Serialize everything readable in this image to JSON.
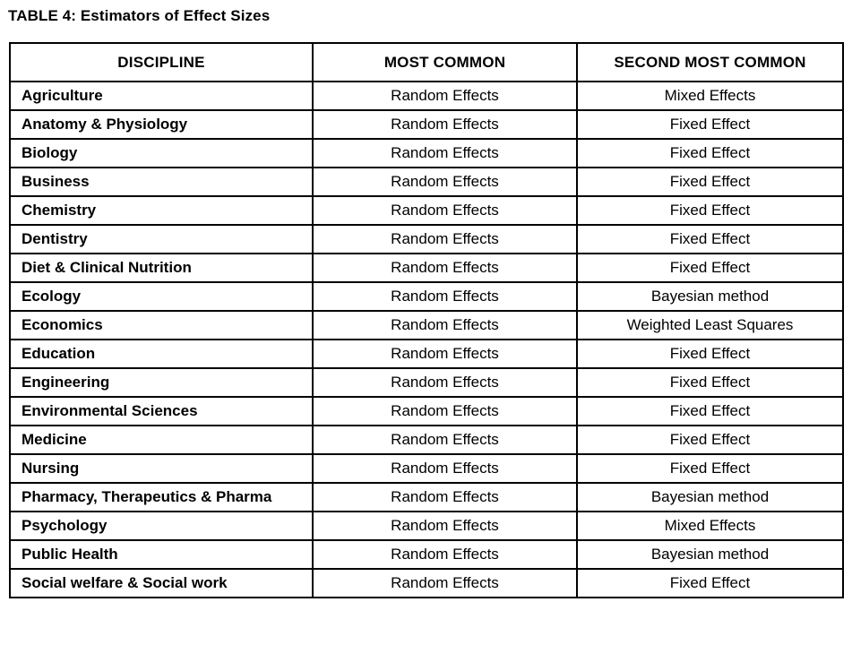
{
  "title": "TABLE 4: Estimators of Effect Sizes",
  "table": {
    "columns": [
      "DISCIPLINE",
      "MOST COMMON",
      "SECOND MOST COMMON"
    ],
    "rows": [
      {
        "discipline": "Agriculture",
        "most_common": "Random Effects",
        "second_most_common": "Mixed Effects"
      },
      {
        "discipline": "Anatomy & Physiology",
        "most_common": "Random Effects",
        "second_most_common": "Fixed Effect"
      },
      {
        "discipline": "Biology",
        "most_common": "Random Effects",
        "second_most_common": "Fixed Effect"
      },
      {
        "discipline": "Business",
        "most_common": "Random Effects",
        "second_most_common": "Fixed Effect"
      },
      {
        "discipline": "Chemistry",
        "most_common": "Random Effects",
        "second_most_common": "Fixed Effect"
      },
      {
        "discipline": "Dentistry",
        "most_common": "Random Effects",
        "second_most_common": "Fixed Effect"
      },
      {
        "discipline": "Diet & Clinical Nutrition",
        "most_common": "Random Effects",
        "second_most_common": "Fixed Effect"
      },
      {
        "discipline": "Ecology",
        "most_common": "Random Effects",
        "second_most_common": "Bayesian method"
      },
      {
        "discipline": "Economics",
        "most_common": "Random Effects",
        "second_most_common": "Weighted Least Squares"
      },
      {
        "discipline": "Education",
        "most_common": "Random Effects",
        "second_most_common": "Fixed Effect"
      },
      {
        "discipline": "Engineering",
        "most_common": "Random Effects",
        "second_most_common": "Fixed Effect"
      },
      {
        "discipline": "Environmental Sciences",
        "most_common": "Random Effects",
        "second_most_common": "Fixed Effect"
      },
      {
        "discipline": "Medicine",
        "most_common": "Random Effects",
        "second_most_common": "Fixed Effect"
      },
      {
        "discipline": "Nursing",
        "most_common": "Random Effects",
        "second_most_common": "Fixed Effect"
      },
      {
        "discipline": "Pharmacy, Therapeutics & Pharma",
        "most_common": "Random Effects",
        "second_most_common": "Bayesian method"
      },
      {
        "discipline": "Psychology",
        "most_common": "Random Effects",
        "second_most_common": "Mixed Effects"
      },
      {
        "discipline": "Public Health",
        "most_common": "Random Effects",
        "second_most_common": "Bayesian method"
      },
      {
        "discipline": "Social welfare & Social work",
        "most_common": "Random Effects",
        "second_most_common": "Fixed Effect"
      }
    ]
  },
  "colors": {
    "text": "#000000",
    "background": "#ffffff",
    "border": "#000000"
  }
}
